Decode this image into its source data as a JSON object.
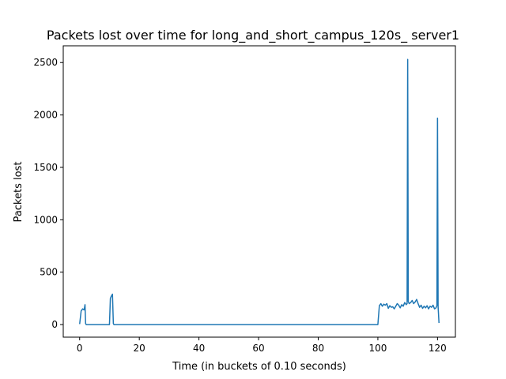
{
  "chart_data": {
    "type": "line",
    "title": "Packets lost over time for long_and_short_campus_120s_ server1",
    "xlabel": "Time (in buckets of 0.10 seconds)",
    "ylabel": "Packets lost",
    "xlim": [
      -5.5,
      126
    ],
    "ylim": [
      -120,
      2660
    ],
    "xticks": [
      0,
      20,
      40,
      60,
      80,
      100,
      120
    ],
    "yticks": [
      0,
      500,
      1000,
      1500,
      2000,
      2500
    ],
    "grid": false,
    "legend": "none",
    "line_color": "#1f77b4",
    "series": [
      {
        "x": [
          0.0,
          0.5,
          1.0,
          1.5,
          1.8,
          2.0,
          2.2,
          10.0,
          10.3,
          10.6,
          11.0,
          11.3,
          11.5,
          100.0,
          100.5,
          101.0,
          101.5,
          102.0,
          102.5,
          103.0,
          103.5,
          104.0,
          104.5,
          105.0,
          105.5,
          106.0,
          106.5,
          107.0,
          107.5,
          108.0,
          108.5,
          109.0,
          109.5,
          109.8,
          110.0,
          110.2,
          110.5,
          111.0,
          111.5,
          112.0,
          112.5,
          113.0,
          113.5,
          114.0,
          114.5,
          115.0,
          115.5,
          116.0,
          116.5,
          117.0,
          117.5,
          118.0,
          118.5,
          119.0,
          119.5,
          119.8,
          120.0,
          120.2,
          120.5
        ],
        "y": [
          5,
          130,
          150,
          140,
          190,
          10,
          0,
          0,
          250,
          270,
          290,
          10,
          0,
          0,
          180,
          200,
          175,
          195,
          185,
          200,
          155,
          180,
          165,
          170,
          150,
          175,
          200,
          185,
          160,
          190,
          175,
          210,
          190,
          200,
          2530,
          220,
          200,
          210,
          230,
          200,
          215,
          240,
          200,
          165,
          185,
          155,
          175,
          160,
          180,
          150,
          175,
          165,
          185,
          150,
          160,
          180,
          1970,
          170,
          15
        ]
      }
    ]
  }
}
